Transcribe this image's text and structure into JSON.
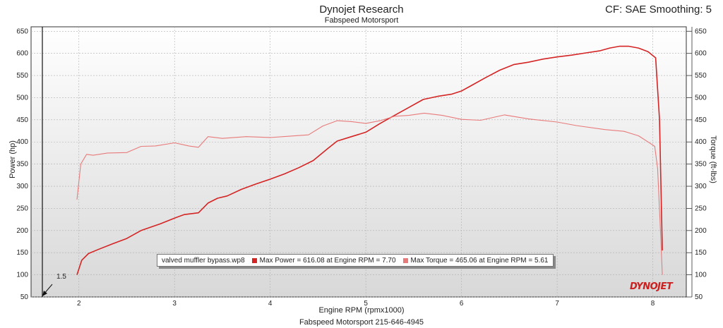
{
  "header": {
    "title": "Dynojet Research",
    "subtitle": "Fabspeed Motorsport",
    "cf_text": "CF: SAE Smoothing: 5"
  },
  "footer": {
    "text": "Fabspeed Motorsport 215-646-4945"
  },
  "logo": {
    "text": "DYNOJET"
  },
  "cursor": {
    "label": "1.5",
    "x": 1.5
  },
  "colors": {
    "power": "#d42424",
    "torque": "#e87a7a",
    "plot_bg_top": "#ffffff",
    "plot_bg_bottom": "#d8d8d8"
  },
  "legend": {
    "run_name": "valved muffler bypass.wp8",
    "max_power": "Max Power = 616.08 at Engine RPM = 7.70",
    "max_torque": "Max Torque = 465.06 at Engine RPM = 5.61"
  },
  "chart_data": {
    "type": "line",
    "xlabel": "Engine RPM (rpmx1000)",
    "ylabel": "Power (hp)",
    "y2label": "Torque (ft-lbs)",
    "xlim": [
      1.5,
      8.35
    ],
    "ylim": [
      50,
      660
    ],
    "x_ticks": [
      2,
      3,
      4,
      5,
      6,
      7,
      8
    ],
    "y_ticks": [
      50,
      100,
      150,
      200,
      250,
      300,
      350,
      400,
      450,
      500,
      550,
      600,
      650
    ],
    "grid": true,
    "series": [
      {
        "name": "Power",
        "x": [
          1.98,
          2.03,
          2.1,
          2.2,
          2.35,
          2.5,
          2.65,
          2.85,
          3.0,
          3.1,
          3.25,
          3.35,
          3.45,
          3.55,
          3.7,
          3.85,
          4.0,
          4.15,
          4.3,
          4.45,
          4.6,
          4.7,
          4.85,
          5.0,
          5.15,
          5.3,
          5.45,
          5.6,
          5.75,
          5.9,
          6.0,
          6.1,
          6.25,
          6.4,
          6.55,
          6.7,
          6.85,
          7.0,
          7.15,
          7.3,
          7.45,
          7.55,
          7.65,
          7.75,
          7.85,
          7.95,
          8.03,
          8.07,
          8.09,
          8.1
        ],
        "values": [
          100,
          133,
          148,
          157,
          170,
          182,
          200,
          215,
          228,
          236,
          240,
          262,
          273,
          278,
          293,
          305,
          316,
          328,
          342,
          358,
          385,
          402,
          412,
          422,
          442,
          460,
          478,
          496,
          503,
          508,
          515,
          527,
          545,
          562,
          575,
          580,
          587,
          592,
          596,
          601,
          606,
          612,
          616,
          616,
          612,
          604,
          590,
          450,
          250,
          155
        ]
      },
      {
        "name": "Torque",
        "x": [
          1.98,
          2.02,
          2.08,
          2.15,
          2.3,
          2.5,
          2.65,
          2.8,
          3.0,
          3.15,
          3.25,
          3.35,
          3.5,
          3.75,
          4.0,
          4.2,
          4.4,
          4.55,
          4.7,
          4.85,
          5.0,
          5.15,
          5.3,
          5.45,
          5.61,
          5.8,
          6.0,
          6.2,
          6.45,
          6.7,
          7.0,
          7.2,
          7.5,
          7.7,
          7.85,
          7.95,
          8.02,
          8.05,
          8.08,
          8.1
        ],
        "values": [
          270,
          350,
          372,
          370,
          375,
          376,
          390,
          391,
          398,
          391,
          388,
          412,
          408,
          412,
          410,
          413,
          416,
          436,
          448,
          446,
          442,
          448,
          458,
          460,
          465,
          460,
          451,
          449,
          461,
          452,
          445,
          437,
          428,
          424,
          414,
          400,
          390,
          340,
          200,
          100
        ]
      }
    ]
  }
}
